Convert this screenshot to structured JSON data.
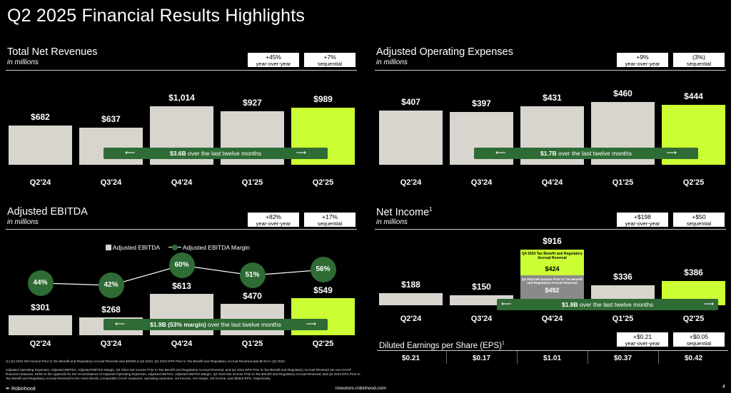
{
  "page_title": "Q2 2025 Financial Results Highlights",
  "colors": {
    "bar_gray": "#d8d5cf",
    "bar_green": "#ccff33",
    "ltm_green": "#2f6b35",
    "background": "#000000"
  },
  "panels": {
    "revenue": {
      "title": "Total Net Revenues",
      "subtitle": "in millions",
      "badge1_value": "+45%",
      "badge1_sub": "year-over-year",
      "badge2_value": "+7%",
      "badge2_sub": "sequential",
      "ltm_bold": "$3.6B",
      "ltm_rest": " over the last twelve months",
      "labels": [
        "$682",
        "$637",
        "$1,014",
        "$927",
        "$989"
      ]
    },
    "opex": {
      "title": "Adjusted Operating Expenses",
      "subtitle": "in millions",
      "badge1_value": "+9%",
      "badge1_sub": "year-over-year",
      "badge2_value": "(3%)",
      "badge2_sub": "sequential",
      "ltm_bold": "$1.7B",
      "ltm_rest": " over the last twelve months",
      "labels": [
        "$407",
        "$397",
        "$431",
        "$460",
        "$444"
      ]
    },
    "ebitda": {
      "title": "Adjusted EBITDA",
      "subtitle": "in millions",
      "badge1_value": "+82%",
      "badge1_sub": "year-over-year",
      "badge2_value": "+17%",
      "badge2_sub": "sequential",
      "ltm_bold": "$1.9B (53% margin)",
      "ltm_rest": " over the last twelve months",
      "legend_bar": "Adjusted EBITDA",
      "legend_line": "Adjusted EBITDA Margin",
      "labels": [
        "$301",
        "$268",
        "$613",
        "$470",
        "$549"
      ],
      "margin_labels": [
        "44%",
        "42%",
        "60%",
        "51%",
        "56%"
      ]
    },
    "net_income": {
      "title": "Net Income",
      "title_sup": "1",
      "subtitle": "in millions",
      "badge1_value": "+$198",
      "badge1_sub": "year-over-year",
      "badge2_value": "+$50",
      "badge2_sub": "sequential",
      "ltm_bold": "$1.8B",
      "ltm_rest": " over the last twelve months",
      "labels": [
        "$188",
        "$150",
        "$916",
        "$336",
        "$386"
      ],
      "seg_green_title": "Q4 2024 Tax Benefit and Regulatory Accrual Reversal",
      "seg_green_value": "$424",
      "seg_gray_title": "Q4 2024 Net Income Prior to Tax Benefit and Regulatory Accrual Reversal",
      "seg_gray_value": "$492"
    },
    "eps": {
      "title": "Diluted Earnings per Share (EPS)",
      "title_sup": "1",
      "badge1_value": "+$0.21",
      "badge1_sub": "year-over-year",
      "badge2_value": "+$0.05",
      "badge2_sub": "sequential",
      "values": [
        "$0.21",
        "$0.17",
        "$1.01",
        "$0.37",
        "$0.42"
      ]
    }
  },
  "footnotes": {
    "line1": "(1) Q4 2024 Net Income Prior to Tax Benefit and Regulatory Accrual Reversal was $492M in Q4 2024. Q4 2024 EPS Prior to Tax Benefit and Regulatory Accrual Reversal was $0.54 in Q4 2024.",
    "line2": "Adjusted Operating Expenses, Adjusted EBITDA, Adjusted EBITDA Margin, Q4 2024 Net Income Prior to Tax Benefit and Regulatory Accrual Reversal, and Q4 2024 EPS Prior to Tax Benefit and Regulatory Accrual Reversal are non-GAAP financial measures. Refer to the Appendix for the reconciliations of Adjusted Operating Expenses, Adjusted EBITDA, Adjusted EBITDA Margin, Q4 2024 Net Income Prior to Tax Benefit and Regulatory Accrual Reversal, and Q4 2024 EPS Prior to Tax Benefit and Regulatory Accrual Reversal to the most directly comparable GAAP measures, operating expenses, net income, net margin, net income, and diluted EPS, respectively."
  },
  "footer": {
    "brand": "Robinhood",
    "url": "investors.robinhood.com",
    "page": "4"
  },
  "chart_data": [
    {
      "type": "bar",
      "title": "Total Net Revenues",
      "subtitle": "in millions",
      "categories": [
        "Q2'24",
        "Q3'24",
        "Q4'24",
        "Q1'25",
        "Q2'25"
      ],
      "values": [
        682,
        637,
        1014,
        927,
        989
      ]
    },
    {
      "type": "bar",
      "title": "Adjusted Operating Expenses",
      "subtitle": "in millions",
      "categories": [
        "Q2'24",
        "Q3'24",
        "Q4'24",
        "Q1'25",
        "Q2'25"
      ],
      "values": [
        407,
        397,
        431,
        460,
        444
      ]
    },
    {
      "type": "bar",
      "title": "Adjusted EBITDA",
      "subtitle": "in millions",
      "categories": [
        "Q2'24",
        "Q3'24",
        "Q4'24",
        "Q1'25",
        "Q2'25"
      ],
      "series": [
        {
          "name": "Adjusted EBITDA",
          "values": [
            301,
            268,
            613,
            470,
            549
          ]
        },
        {
          "name": "Adjusted EBITDA Margin",
          "values": [
            44,
            42,
            60,
            51,
            56
          ]
        }
      ]
    },
    {
      "type": "bar",
      "title": "Net Income",
      "subtitle": "in millions",
      "categories": [
        "Q2'24",
        "Q3'24",
        "Q4'24",
        "Q1'25",
        "Q2'25"
      ],
      "values": [
        188,
        150,
        916,
        336,
        386
      ],
      "q4_breakdown": [
        492,
        424
      ]
    },
    {
      "type": "table",
      "title": "Diluted Earnings per Share (EPS)",
      "categories": [
        "Q2'24",
        "Q3'24",
        "Q4'24",
        "Q1'25",
        "Q2'25"
      ],
      "values": [
        0.21,
        0.17,
        1.01,
        0.37,
        0.42
      ]
    }
  ]
}
